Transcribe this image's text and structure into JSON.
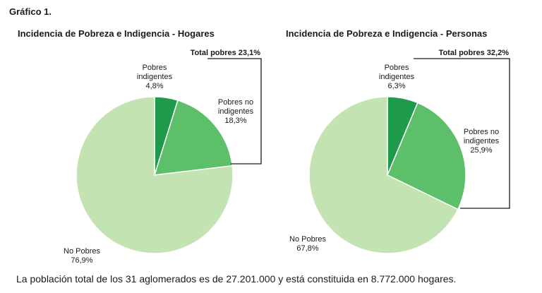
{
  "figure_label": "Gráfico 1.",
  "footnote": "La población total de los 31 aglomerados es de 27.201.000 y está constituida en 8.772.000 hogares.",
  "colors": {
    "pobres_indigentes": "#1f9a4a",
    "pobres_no_indigentes": "#5dbf6a",
    "no_pobres": "#c4e3b3"
  },
  "chart_data": [
    {
      "type": "pie",
      "title": "Incidencia de Pobreza e Indigencia - Hogares",
      "total_label": "Total pobres 23,1%",
      "slices": [
        {
          "key": "pobres_indigentes",
          "lines": [
            "Pobres",
            "indigentes",
            "4,8%"
          ],
          "value": 4.8
        },
        {
          "key": "pobres_no_indigentes",
          "lines": [
            "Pobres no",
            "indigentes",
            "18,3%"
          ],
          "value": 18.3
        },
        {
          "key": "no_pobres",
          "lines": [
            "No Pobres",
            "76,9%"
          ],
          "value": 76.9
        }
      ]
    },
    {
      "type": "pie",
      "title": "Incidencia de Pobreza e Indigencia - Personas",
      "total_label": "Total pobres 32,2%",
      "slices": [
        {
          "key": "pobres_indigentes",
          "lines": [
            "Pobres",
            "indigentes",
            "6,3%"
          ],
          "value": 6.3
        },
        {
          "key": "pobres_no_indigentes",
          "lines": [
            "Pobres no",
            "indigentes",
            "25,9%"
          ],
          "value": 25.9
        },
        {
          "key": "no_pobres",
          "lines": [
            "No Pobres",
            "67,8%"
          ],
          "value": 67.8
        }
      ]
    }
  ]
}
